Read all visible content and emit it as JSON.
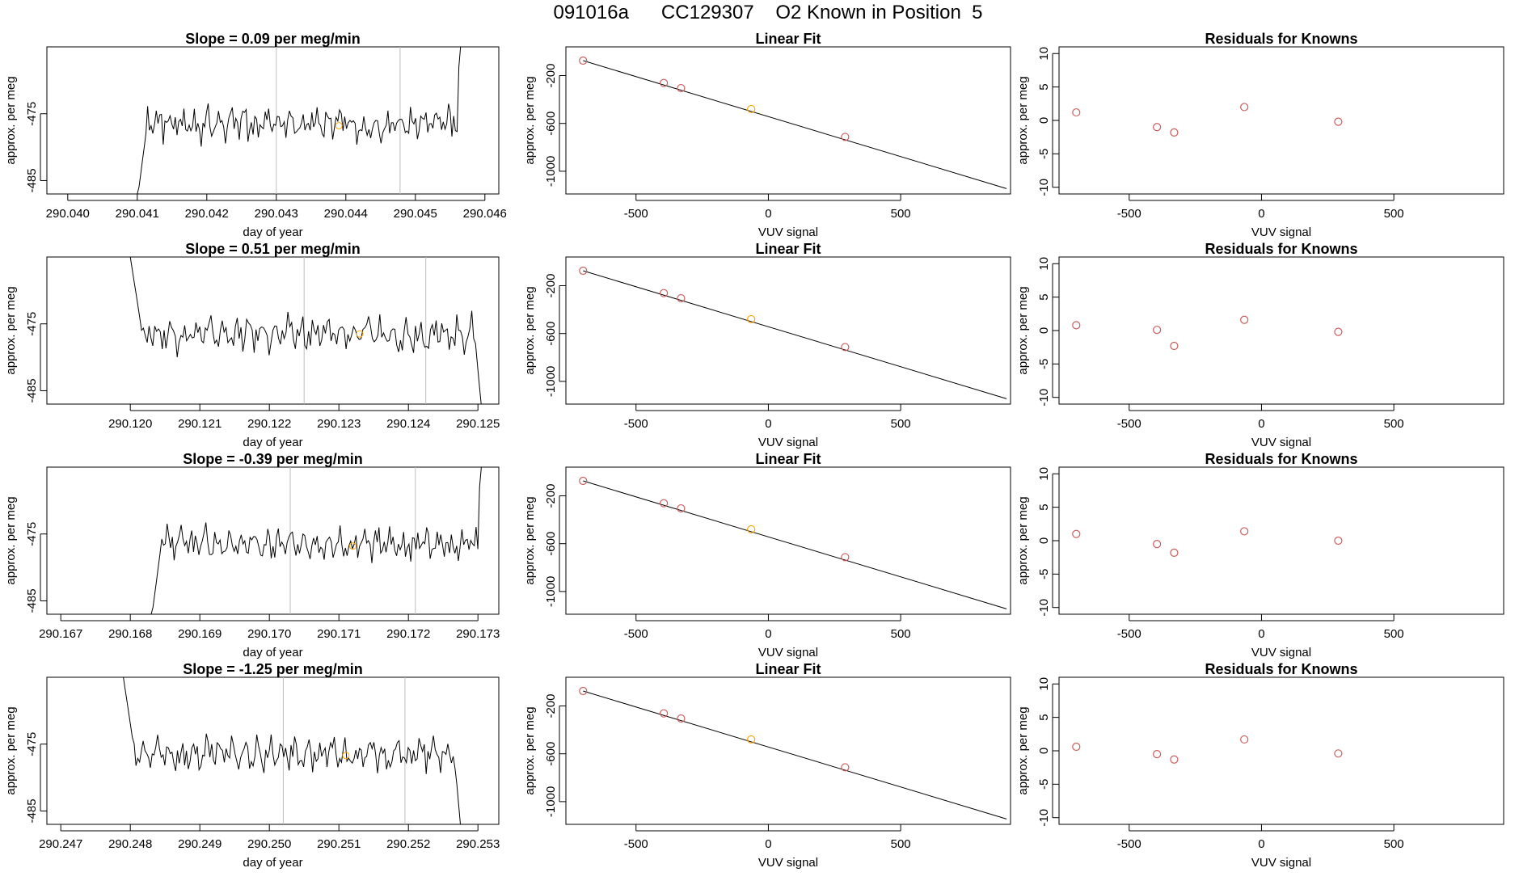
{
  "page": {
    "title": "091016a      CC129307    O2 Known in Position  5"
  },
  "chart_data": [
    {
      "type": "line",
      "title": "Slope =  0.09  per meg/min",
      "xlabel": "day of year",
      "ylabel": "approx. per meg",
      "xlim": [
        290.0397,
        290.0462
      ],
      "ylim": [
        -487,
        -465
      ],
      "xticks": [
        290.04,
        290.041,
        290.042,
        290.043,
        290.044,
        290.045,
        290.046
      ],
      "yticks": [
        -475,
        -485
      ],
      "vlines": [
        290.043,
        290.04478
      ],
      "marker": {
        "x": 290.0439,
        "y": -476.8,
        "color": "#ffa500"
      },
      "series": [
        {
          "start": 290.0397,
          "step": 2.5e-05,
          "trace": "A",
          "first": 290.041,
          "last": 290.0457
        }
      ]
    },
    {
      "type": "line",
      "title": "Slope =  0.51  per meg/min",
      "xlabel": "day of year",
      "ylabel": "approx. per meg",
      "xlim": [
        290.1188,
        290.1253
      ],
      "ylim": [
        -487,
        -465
      ],
      "xticks": [
        290.12,
        290.121,
        290.122,
        290.123,
        290.124,
        290.125
      ],
      "yticks": [
        -475,
        -485
      ],
      "vlines": [
        290.1225,
        290.12425
      ],
      "marker": {
        "x": 290.1233,
        "y": -476.5,
        "color": "#ffa500"
      },
      "series": [
        {
          "trace": "B",
          "first": 290.12,
          "last": 290.1251
        }
      ]
    },
    {
      "type": "line",
      "title": "Slope =  -0.39  per meg/min",
      "xlabel": "day of year",
      "ylabel": "approx. per meg",
      "xlim": [
        290.1668,
        290.1733
      ],
      "ylim": [
        -487,
        -465
      ],
      "xticks": [
        290.167,
        290.168,
        290.169,
        290.17,
        290.171,
        290.172,
        290.173
      ],
      "yticks": [
        -475,
        -485
      ],
      "vlines": [
        290.1703,
        290.1721
      ],
      "marker": {
        "x": 290.1712,
        "y": -476.8,
        "color": "#ffa500"
      },
      "series": [
        {
          "trace": "A",
          "first": 290.1683,
          "last": 290.1731
        }
      ]
    },
    {
      "type": "line",
      "title": "Slope =  -1.25  per meg/min",
      "xlabel": "day of year",
      "ylabel": "approx. per meg",
      "xlim": [
        290.2468,
        290.2533
      ],
      "ylim": [
        -487,
        -465
      ],
      "xticks": [
        290.247,
        290.248,
        290.249,
        290.25,
        290.251,
        290.252,
        290.253
      ],
      "yticks": [
        -475,
        -485
      ],
      "vlines": [
        290.2502,
        290.25195
      ],
      "marker": {
        "x": 290.2511,
        "y": -476.7,
        "color": "#ffa500"
      },
      "series": [
        {
          "trace": "B",
          "first": 290.2479,
          "last": 290.2528
        }
      ]
    },
    {
      "type": "scatter",
      "title": "Linear Fit",
      "xlabel": "VUV signal",
      "ylabel": "approx. per meg",
      "xlim": [
        -765,
        915
      ],
      "ylim": [
        -1190,
        40
      ],
      "xticks": [
        -500,
        0,
        500
      ],
      "yticks": [
        -200,
        -600,
        -1000
      ],
      "fit_line": {
        "x": [
          -700,
          900
        ],
        "y": [
          -75,
          -1145
        ]
      },
      "points": [
        {
          "x": -700,
          "y": -75,
          "color": "#cd5c5c"
        },
        {
          "x": -395,
          "y": -262,
          "color": "#cd5c5c"
        },
        {
          "x": -330,
          "y": -305,
          "color": "#cd5c5c"
        },
        {
          "x": -65,
          "y": -480,
          "color": "#ffa500"
        },
        {
          "x": 290,
          "y": -713,
          "color": "#cd5c5c"
        }
      ]
    },
    {
      "type": "scatter",
      "title": "Linear Fit",
      "xlabel": "VUV signal",
      "ylabel": "approx. per meg",
      "xlim": [
        -765,
        915
      ],
      "ylim": [
        -1190,
        40
      ],
      "xticks": [
        -500,
        0,
        500
      ],
      "yticks": [
        -200,
        -600,
        -1000
      ],
      "fit_line": {
        "x": [
          -700,
          900
        ],
        "y": [
          -75,
          -1145
        ]
      },
      "points": [
        {
          "x": -700,
          "y": -75,
          "color": "#cd5c5c"
        },
        {
          "x": -395,
          "y": -262,
          "color": "#cd5c5c"
        },
        {
          "x": -330,
          "y": -305,
          "color": "#cd5c5c"
        },
        {
          "x": -65,
          "y": -480,
          "color": "#ffa500"
        },
        {
          "x": 290,
          "y": -713,
          "color": "#cd5c5c"
        }
      ]
    },
    {
      "type": "scatter",
      "title": "Linear Fit",
      "xlabel": "VUV signal",
      "ylabel": "approx. per meg",
      "xlim": [
        -765,
        915
      ],
      "ylim": [
        -1190,
        40
      ],
      "xticks": [
        -500,
        0,
        500
      ],
      "yticks": [
        -200,
        -600,
        -1000
      ],
      "fit_line": {
        "x": [
          -700,
          900
        ],
        "y": [
          -75,
          -1145
        ]
      },
      "points": [
        {
          "x": -700,
          "y": -75,
          "color": "#cd5c5c"
        },
        {
          "x": -395,
          "y": -262,
          "color": "#cd5c5c"
        },
        {
          "x": -330,
          "y": -305,
          "color": "#cd5c5c"
        },
        {
          "x": -65,
          "y": -480,
          "color": "#ffa500"
        },
        {
          "x": 290,
          "y": -713,
          "color": "#cd5c5c"
        }
      ]
    },
    {
      "type": "scatter",
      "title": "Linear Fit",
      "xlabel": "VUV signal",
      "ylabel": "approx. per meg",
      "xlim": [
        -765,
        915
      ],
      "ylim": [
        -1190,
        40
      ],
      "xticks": [
        -500,
        0,
        500
      ],
      "yticks": [
        -200,
        -600,
        -1000
      ],
      "fit_line": {
        "x": [
          -700,
          900
        ],
        "y": [
          -75,
          -1145
        ]
      },
      "points": [
        {
          "x": -700,
          "y": -75,
          "color": "#cd5c5c"
        },
        {
          "x": -395,
          "y": -262,
          "color": "#cd5c5c"
        },
        {
          "x": -330,
          "y": -305,
          "color": "#cd5c5c"
        },
        {
          "x": -65,
          "y": -480,
          "color": "#ffa500"
        },
        {
          "x": 290,
          "y": -713,
          "color": "#cd5c5c"
        }
      ]
    },
    {
      "type": "scatter",
      "title": "Residuals for Knowns",
      "xlabel": "VUV signal",
      "ylabel": "approx. per meg",
      "xlim": [
        -765,
        915
      ],
      "ylim": [
        -11,
        11
      ],
      "xticks": [
        -500,
        0,
        500
      ],
      "yticks": [
        10,
        5,
        0,
        -5,
        -10
      ],
      "points": [
        {
          "x": -700,
          "y": 1.2,
          "color": "#cd5c5c"
        },
        {
          "x": -395,
          "y": -1.0,
          "color": "#cd5c5c"
        },
        {
          "x": -330,
          "y": -1.8,
          "color": "#cd5c5c"
        },
        {
          "x": -65,
          "y": 2.0,
          "color": "#cd5c5c"
        },
        {
          "x": 290,
          "y": -0.2,
          "color": "#cd5c5c"
        }
      ]
    },
    {
      "type": "scatter",
      "title": "Residuals for Knowns",
      "xlabel": "VUV signal",
      "ylabel": "approx. per meg",
      "xlim": [
        -765,
        915
      ],
      "ylim": [
        -11,
        11
      ],
      "xticks": [
        -500,
        0,
        500
      ],
      "yticks": [
        10,
        5,
        0,
        -5,
        -10
      ],
      "points": [
        {
          "x": -700,
          "y": 0.8,
          "color": "#cd5c5c"
        },
        {
          "x": -395,
          "y": 0.1,
          "color": "#cd5c5c"
        },
        {
          "x": -330,
          "y": -2.3,
          "color": "#cd5c5c"
        },
        {
          "x": -65,
          "y": 1.6,
          "color": "#cd5c5c"
        },
        {
          "x": 290,
          "y": -0.2,
          "color": "#cd5c5c"
        }
      ]
    },
    {
      "type": "scatter",
      "title": "Residuals for Knowns",
      "xlabel": "VUV signal",
      "ylabel": "approx. per meg",
      "xlim": [
        -765,
        915
      ],
      "ylim": [
        -11,
        11
      ],
      "xticks": [
        -500,
        0,
        500
      ],
      "yticks": [
        10,
        5,
        0,
        -5,
        -10
      ],
      "points": [
        {
          "x": -700,
          "y": 1.0,
          "color": "#cd5c5c"
        },
        {
          "x": -395,
          "y": -0.5,
          "color": "#cd5c5c"
        },
        {
          "x": -330,
          "y": -1.8,
          "color": "#cd5c5c"
        },
        {
          "x": -65,
          "y": 1.4,
          "color": "#cd5c5c"
        },
        {
          "x": 290,
          "y": 0.0,
          "color": "#cd5c5c"
        }
      ]
    },
    {
      "type": "scatter",
      "title": "Residuals for Knowns",
      "xlabel": "VUV signal",
      "ylabel": "approx. per meg",
      "xlim": [
        -765,
        915
      ],
      "ylim": [
        -11,
        11
      ],
      "xticks": [
        -500,
        0,
        500
      ],
      "yticks": [
        10,
        5,
        0,
        -5,
        -10
      ],
      "points": [
        {
          "x": -700,
          "y": 0.6,
          "color": "#cd5c5c"
        },
        {
          "x": -395,
          "y": -0.5,
          "color": "#cd5c5c"
        },
        {
          "x": -330,
          "y": -1.3,
          "color": "#cd5c5c"
        },
        {
          "x": -65,
          "y": 1.7,
          "color": "#cd5c5c"
        },
        {
          "x": 290,
          "y": -0.4,
          "color": "#cd5c5c"
        }
      ]
    }
  ]
}
